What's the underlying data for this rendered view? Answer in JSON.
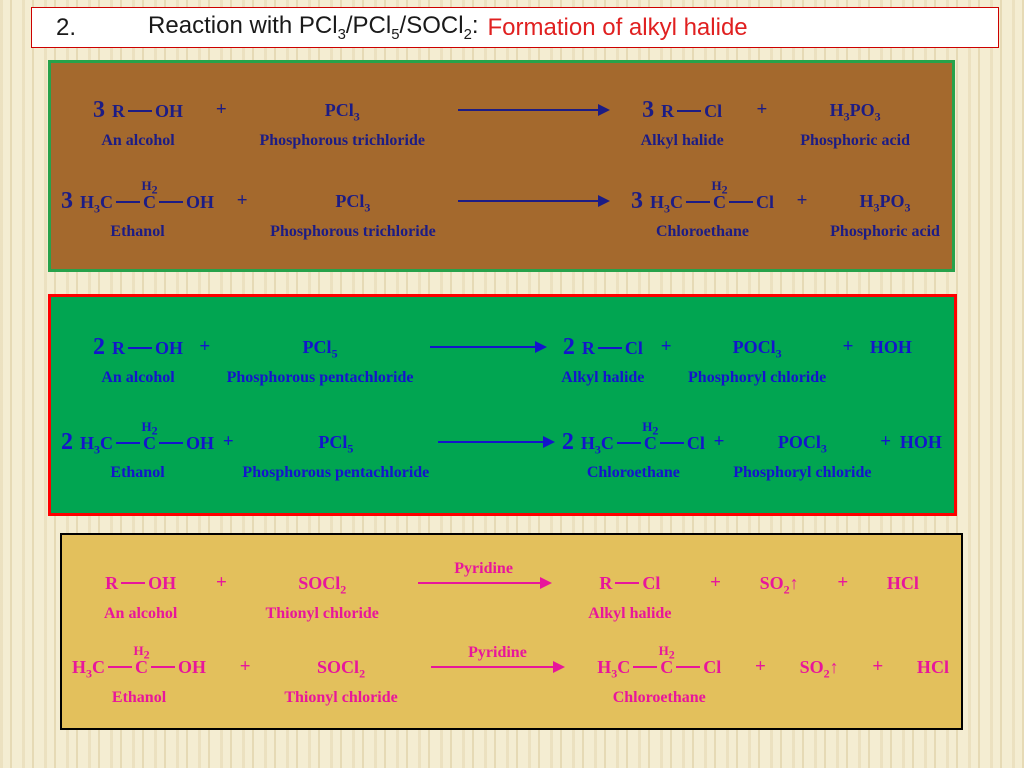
{
  "title": {
    "number": "2.",
    "text": "Reaction with PCl_3/PCl_5/SOCl_2:",
    "highlight": "Formation of alkyl halide"
  },
  "sym": {
    "plus": "+"
  },
  "colors": {
    "page_bg": "#F4EDD2",
    "title_border": "#CC0000",
    "title_highlight_text": "#E02020",
    "pcl3_bg": "#A4692D",
    "pcl3_border": "#27A24B",
    "pcl3_text": "#1C1C85",
    "pcl5_bg": "#01A551",
    "pcl5_border": "#FE0000",
    "pcl5_text": "#1414CC",
    "socl2_bg": "#E3C05C",
    "socl2_border": "#000000",
    "socl2_text": "#E8169B"
  },
  "pcl3": {
    "generic": {
      "coef_left": "3",
      "alc_a": "R",
      "alc_b": "OH",
      "alc_label": "An alcohol",
      "reagent": "PCl_3",
      "reagent_label": "Phosphorous trichloride",
      "coef_right": "3",
      "hal_a": "R",
      "hal_b": "Cl",
      "hal_label": "Alkyl halide",
      "by1": "H_3PO_3",
      "by1_label": "Phosphoric acid"
    },
    "ethanol": {
      "coef_left": "3",
      "alc_a": "H_3C",
      "alc_h2": "H_2",
      "alc_c": "C",
      "alc_b": "OH",
      "alc_label": "Ethanol",
      "reagent": "PCl_3",
      "reagent_label": "Phosphorous trichloride",
      "coef_right": "3",
      "hal_a": "H_3C",
      "hal_h2": "H_2",
      "hal_c": "C",
      "hal_b": "Cl",
      "hal_label": "Chloroethane",
      "by1": "H_3PO_3",
      "by1_label": "Phosphoric acid"
    }
  },
  "pcl5": {
    "generic": {
      "coef_left": "2",
      "alc_a": "R",
      "alc_b": "OH",
      "alc_label": "An alcohol",
      "reagent": "PCl_5",
      "reagent_label": "Phosphorous pentachloride",
      "coef_right": "2",
      "hal_a": "R",
      "hal_b": "Cl",
      "hal_label": "Alkyl halide",
      "by1": "POCl_3",
      "by1_label": "Phosphoryl chloride",
      "by2": "HOH"
    },
    "ethanol": {
      "coef_left": "2",
      "alc_a": "H_3C",
      "alc_h2": "H_2",
      "alc_c": "C",
      "alc_b": "OH",
      "alc_label": "Ethanol",
      "reagent": "PCl_5",
      "reagent_label": "Phosphorous pentachloride",
      "coef_right": "2",
      "hal_a": "H_3C",
      "hal_h2": "H_2",
      "hal_c": "C",
      "hal_b": "Cl",
      "hal_label": "Chloroethane",
      "by1": "POCl_3",
      "by1_label": "Phosphoryl chloride",
      "by2": "HOH"
    }
  },
  "socl2": {
    "generic": {
      "alc_a": "R",
      "alc_b": "OH",
      "alc_label": "An alcohol",
      "reagent": "SOCl_2",
      "reagent_label": "Thionyl chloride",
      "arrow_label": "Pyridine",
      "hal_a": "R",
      "hal_b": "Cl",
      "hal_label": "Alkyl halide",
      "by1": "SO_2↑",
      "by2": "HCl"
    },
    "ethanol": {
      "alc_a": "H_3C",
      "alc_h2": "H_2",
      "alc_c": "C",
      "alc_b": "OH",
      "alc_label": "Ethanol",
      "reagent": "SOCl_2",
      "reagent_label": "Thionyl chloride",
      "arrow_label": "Pyridine",
      "hal_a": "H_3C",
      "hal_h2": "H_2",
      "hal_c": "C",
      "hal_b": "Cl",
      "hal_label": "Chloroethane",
      "by1": "SO_2↑",
      "by2": "HCl"
    }
  }
}
